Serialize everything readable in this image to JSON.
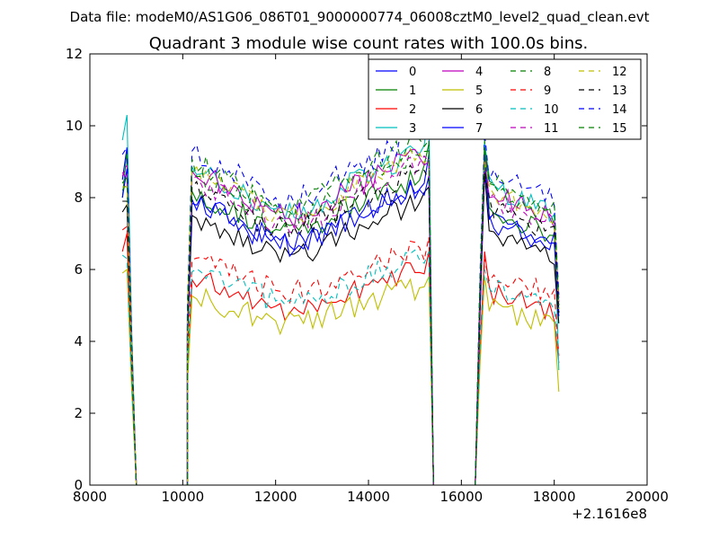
{
  "header": {
    "data_file": "Data file: modeM0/AS1G06_086T01_9000000774_06008cztM0_level2_quad_clean.evt"
  },
  "chart_data": {
    "type": "line",
    "title": "Quadrant 3 module wise count rates with 100.0s bins.",
    "xlabel": "",
    "ylabel": "",
    "x_offset_label": "+2.1616e8",
    "xlim": [
      8000,
      20000
    ],
    "ylim": [
      0,
      12
    ],
    "xticks": [
      8000,
      10000,
      12000,
      14000,
      16000,
      18000,
      20000
    ],
    "xtick_labels": [
      "8000",
      "10000",
      "12000",
      "14000",
      "16000",
      "18000",
      "20000"
    ],
    "yticks": [
      0,
      2,
      4,
      6,
      8,
      10,
      12
    ],
    "ytick_labels": [
      "0",
      "2",
      "4",
      "6",
      "8",
      "10",
      "12"
    ],
    "grid": false,
    "legend": {
      "placement": "top-right",
      "columns": 4
    },
    "segments_x": [
      [
        8700,
        8800,
        8900,
        9000
      ],
      [
        10100,
        10200,
        10300,
        10400,
        10500,
        10600,
        10700,
        10800,
        10900,
        11000,
        11100,
        11200,
        11300,
        11400,
        11500,
        11600,
        11700,
        11800,
        11900,
        12000,
        12100,
        12200,
        12300,
        12400,
        12500,
        12600,
        12700,
        12800,
        12900,
        13000,
        13100,
        13200,
        13300,
        13400,
        13500,
        13600,
        13700,
        13800,
        13900,
        14000,
        14100,
        14200,
        14300,
        14400,
        14500,
        14600,
        14700,
        14800,
        14900,
        15000,
        15100,
        15200,
        15300,
        15400
      ],
      [
        16300,
        16400,
        16500,
        16600,
        16700,
        16800,
        16900,
        17000,
        17100,
        17200,
        17300,
        17400,
        17500,
        17600,
        17700,
        17800,
        17900,
        18000,
        18100
      ]
    ],
    "gap_x": [
      9000,
      10100,
      15400,
      16300
    ],
    "series": [
      {
        "name": "0",
        "color": "#0000ff",
        "dashed": false,
        "level": 7.1,
        "head": 8.5,
        "peakA": 9.4,
        "peakB": 9.2,
        "bump": 9.3,
        "tail": 4.8
      },
      {
        "name": "1",
        "color": "#008000",
        "dashed": false,
        "level": 7.3,
        "head": 8.0,
        "peakA": 9.3,
        "peakB": 9.5,
        "bump": 9.6,
        "tail": 5.0
      },
      {
        "name": "2",
        "color": "#ff0000",
        "dashed": false,
        "level": 5.1,
        "head": 6.5,
        "peakA": 7.0,
        "peakB": 6.5,
        "bump": 6.5,
        "tail": 3.4
      },
      {
        "name": "3",
        "color": "#00bfbf",
        "dashed": false,
        "level": 7.9,
        "head": 9.6,
        "peakA": 10.3,
        "peakB": 10.5,
        "bump": 9.5,
        "tail": 3.2
      },
      {
        "name": "4",
        "color": "#bf00bf",
        "dashed": false,
        "level": 7.8,
        "head": 8.7,
        "peakA": 8.5,
        "peakB": 9.0,
        "bump": 9.0,
        "tail": 5.2
      },
      {
        "name": "5",
        "color": "#bfbf00",
        "dashed": false,
        "level": 4.7,
        "head": 5.9,
        "peakA": 6.0,
        "peakB": 5.8,
        "bump": 5.8,
        "tail": 2.6
      },
      {
        "name": "6",
        "color": "#000000",
        "dashed": false,
        "level": 6.7,
        "head": 7.6,
        "peakA": 7.8,
        "peakB": 8.3,
        "bump": 8.7,
        "tail": 4.5
      },
      {
        "name": "7",
        "color": "#0000ff",
        "dashed": false,
        "level": 7.0,
        "head": 8.0,
        "peakA": 8.8,
        "peakB": 8.6,
        "bump": 9.0,
        "tail": 4.7
      },
      {
        "name": "8",
        "color": "#008000",
        "dashed": true,
        "level": 7.8,
        "head": 8.2,
        "peakA": 8.4,
        "peakB": 9.3,
        "bump": 9.4,
        "tail": 4.9
      },
      {
        "name": "9",
        "color": "#ff0000",
        "dashed": true,
        "level": 5.6,
        "head": 7.1,
        "peakA": 7.2,
        "peakB": 6.9,
        "bump": 6.3,
        "tail": 3.6
      },
      {
        "name": "10",
        "color": "#00bfbf",
        "dashed": true,
        "level": 5.3,
        "head": 6.4,
        "peakA": 6.3,
        "peakB": 6.5,
        "bump": 6.0,
        "tail": 3.5
      },
      {
        "name": "11",
        "color": "#bf00bf",
        "dashed": true,
        "level": 7.6,
        "head": 8.6,
        "peakA": 8.9,
        "peakB": 9.0,
        "bump": 9.2,
        "tail": 5.1
      },
      {
        "name": "12",
        "color": "#bfbf00",
        "dashed": true,
        "level": 7.8,
        "head": 8.3,
        "peakA": 8.3,
        "peakB": 9.1,
        "bump": 9.0,
        "tail": 4.9
      },
      {
        "name": "13",
        "color": "#000000",
        "dashed": true,
        "level": 7.4,
        "head": 7.9,
        "peakA": 7.9,
        "peakB": 8.5,
        "bump": 8.7,
        "tail": 4.8
      },
      {
        "name": "14",
        "color": "#0000ff",
        "dashed": true,
        "level": 8.3,
        "head": 9.2,
        "peakA": 9.4,
        "peakB": 9.6,
        "bump": 9.8,
        "tail": 5.3
      },
      {
        "name": "15",
        "color": "#008000",
        "dashed": true,
        "level": 8.1,
        "head": 8.4,
        "peakA": 8.6,
        "peakB": 9.6,
        "bump": 9.4,
        "tail": 5.0
      }
    ]
  }
}
